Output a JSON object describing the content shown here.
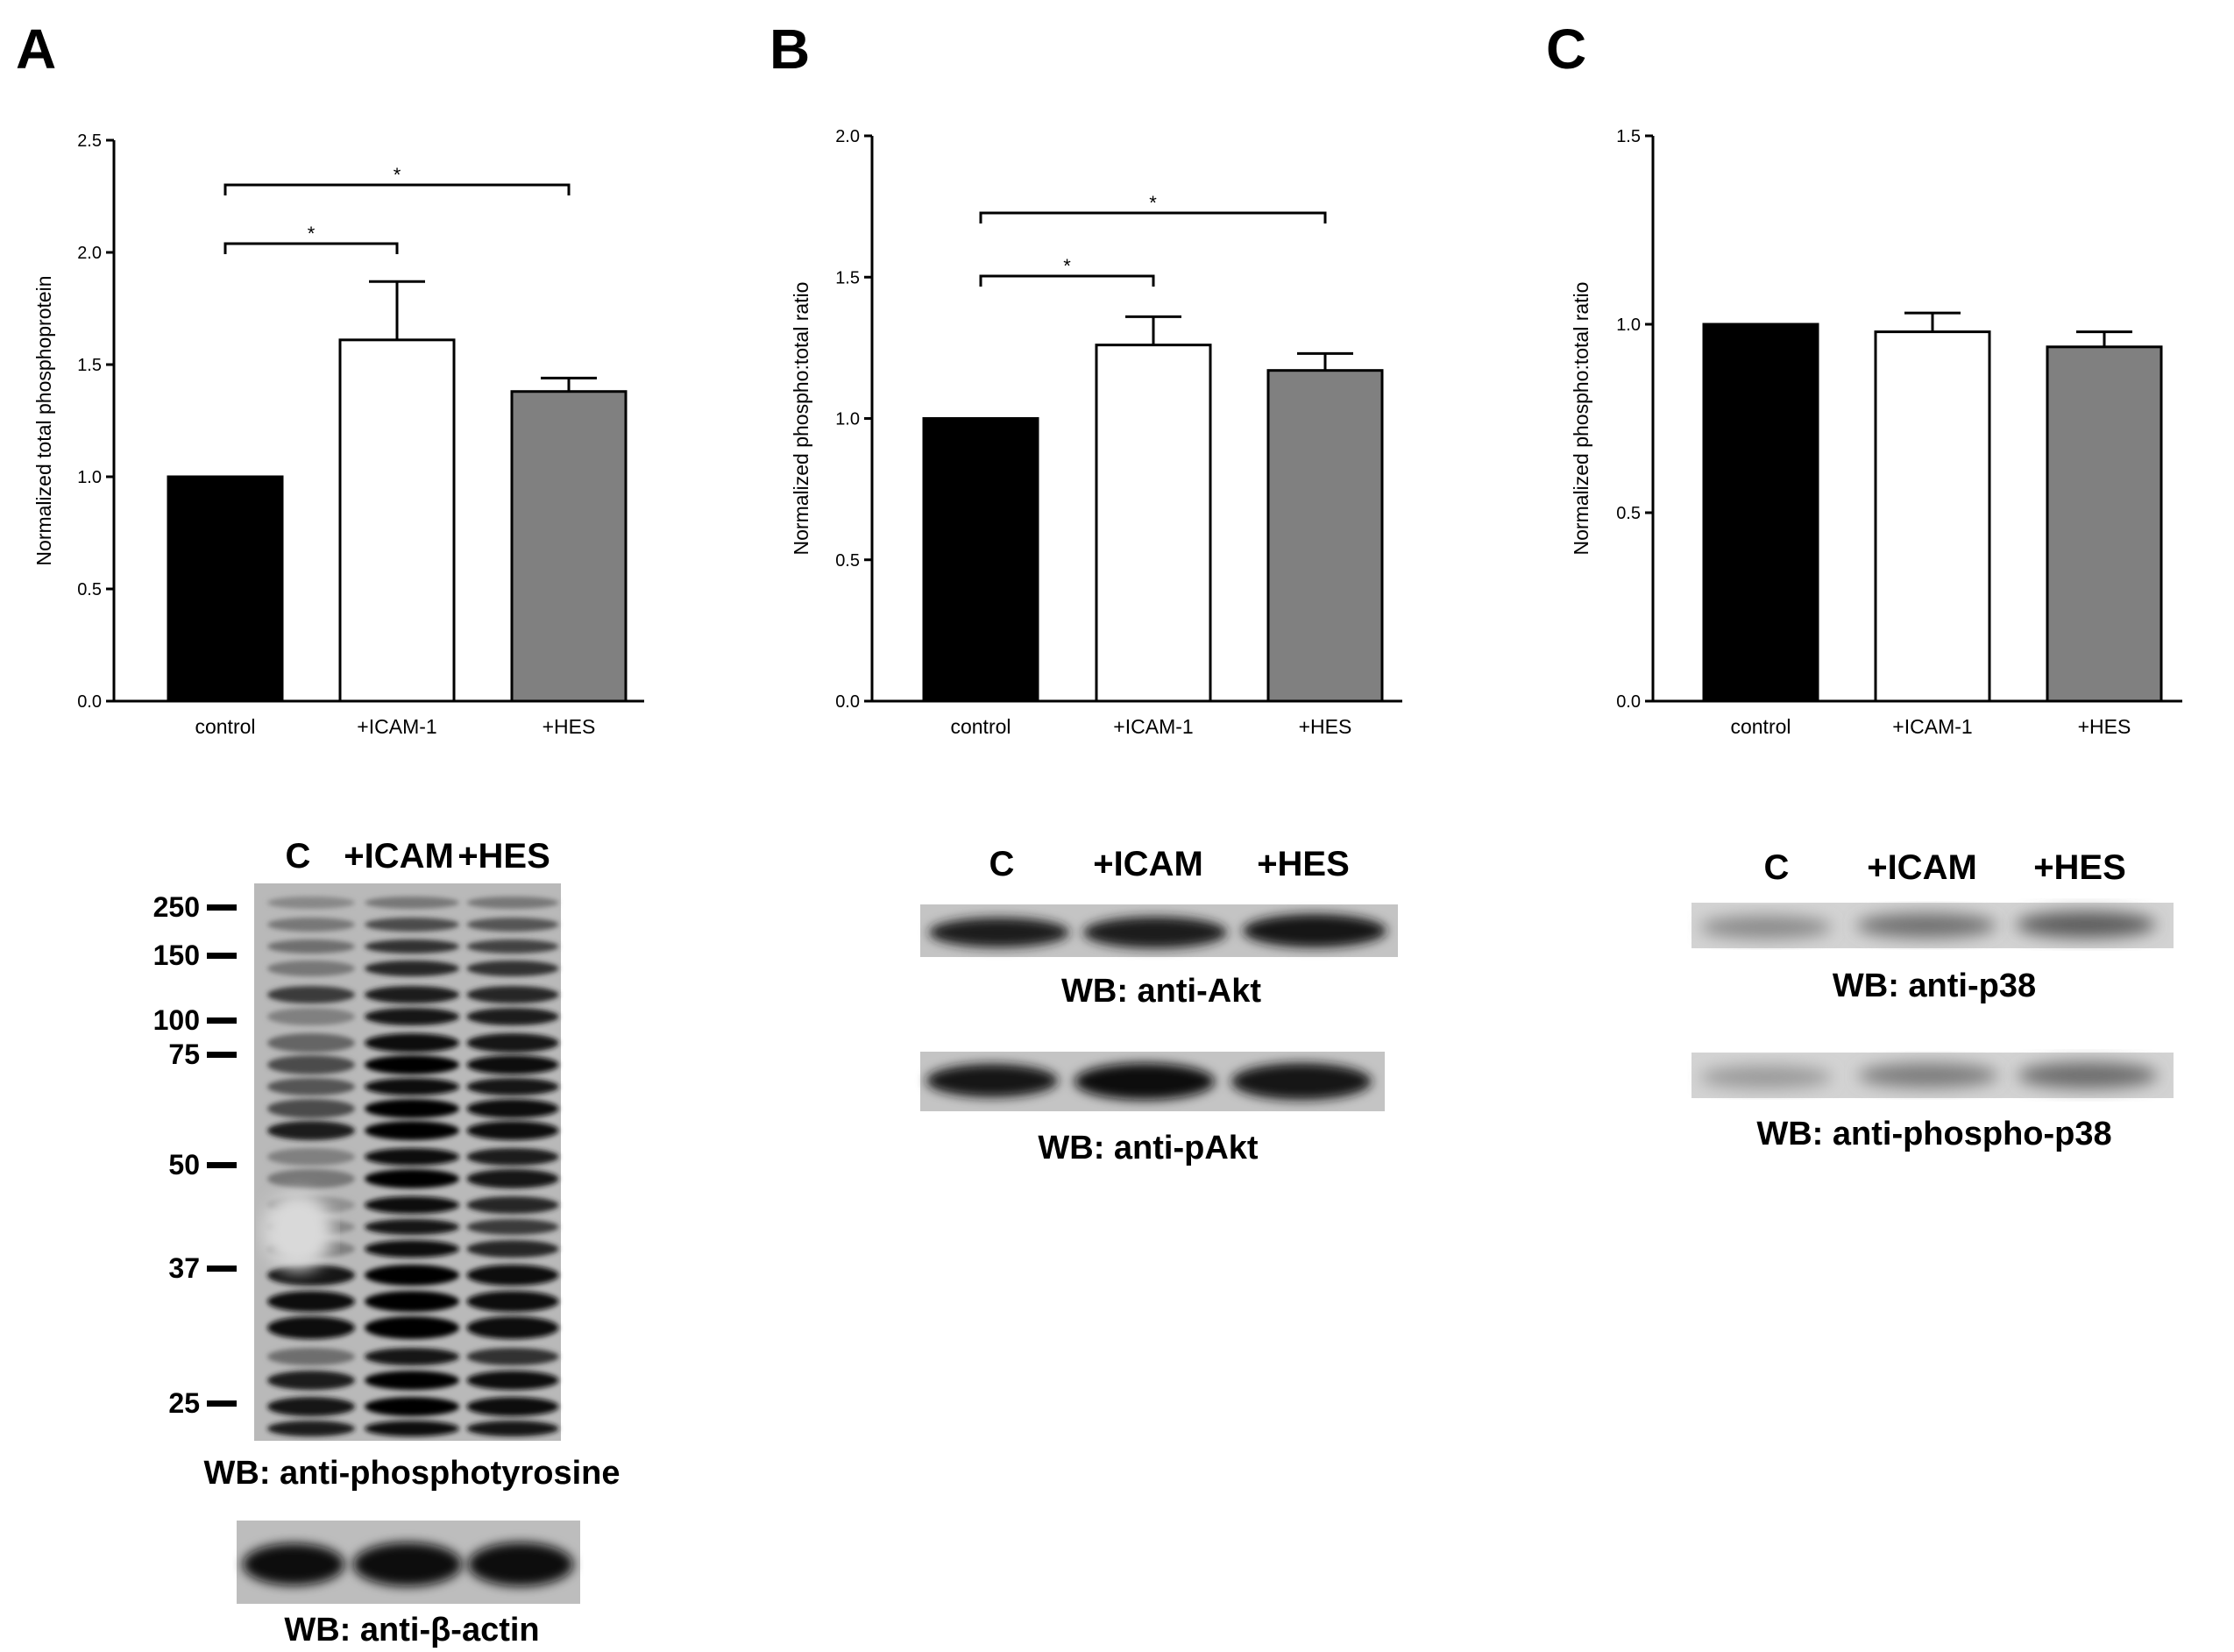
{
  "panels": [
    {
      "letter": "A"
    },
    {
      "letter": "B"
    },
    {
      "letter": "C"
    }
  ],
  "chart_data": [
    {
      "type": "bar",
      "panel": "A",
      "categories": [
        "control",
        "+ICAM-1",
        "+HES"
      ],
      "values": [
        1.0,
        1.61,
        1.38
      ],
      "errors": [
        0,
        0.26,
        0.06
      ],
      "ylabel": "Normalized total phosphoprotein",
      "ylim": [
        0,
        2.5
      ],
      "yticks": [
        "0.0",
        "0.5",
        "1.0",
        "1.5",
        "2.0",
        "2.5"
      ],
      "colors": [
        "#000000",
        "#ffffff",
        "#808080"
      ],
      "significance": [
        {
          "from": 0,
          "to": 1,
          "label": "*"
        },
        {
          "from": 0,
          "to": 2,
          "label": "*"
        }
      ]
    },
    {
      "type": "bar",
      "panel": "B",
      "categories": [
        "control",
        "+ICAM-1",
        "+HES"
      ],
      "values": [
        1.0,
        1.26,
        1.17
      ],
      "errors": [
        0,
        0.1,
        0.06
      ],
      "ylabel": "Normalized phospho:total ratio",
      "ylim": [
        0,
        2.0
      ],
      "yticks": [
        "0.0",
        "0.5",
        "1.0",
        "1.5",
        "2.0"
      ],
      "colors": [
        "#000000",
        "#ffffff",
        "#808080"
      ],
      "significance": [
        {
          "from": 0,
          "to": 1,
          "label": "*"
        },
        {
          "from": 0,
          "to": 2,
          "label": "*"
        }
      ]
    },
    {
      "type": "bar",
      "panel": "C",
      "categories": [
        "control",
        "+ICAM-1",
        "+HES"
      ],
      "values": [
        1.0,
        0.98,
        0.94
      ],
      "errors": [
        0,
        0.05,
        0.04
      ],
      "ylabel": "Normalized phospho:total ratio",
      "ylim": [
        0,
        1.5
      ],
      "yticks": [
        "0.0",
        "0.5",
        "1.0",
        "1.5"
      ],
      "colors": [
        "#000000",
        "#ffffff",
        "#808080"
      ],
      "significance": []
    }
  ],
  "blots": {
    "A": {
      "lanes": [
        "C",
        "+ICAM",
        "+HES"
      ],
      "markers": [
        "250",
        "150",
        "100",
        "75",
        "50",
        "37",
        "25"
      ],
      "caption_main": "WB: anti-phosphotyrosine",
      "caption_actin": "WB: anti-β-actin"
    },
    "B": {
      "lanes": [
        "C",
        "+ICAM",
        "+HES"
      ],
      "caption_top": "WB: anti-Akt",
      "caption_bottom": "WB: anti-pAkt"
    },
    "C": {
      "lanes": [
        "C",
        "+ICAM",
        "+HES"
      ],
      "caption_top": "WB: anti-p38",
      "caption_bottom": "WB: anti-phospho-p38"
    }
  }
}
